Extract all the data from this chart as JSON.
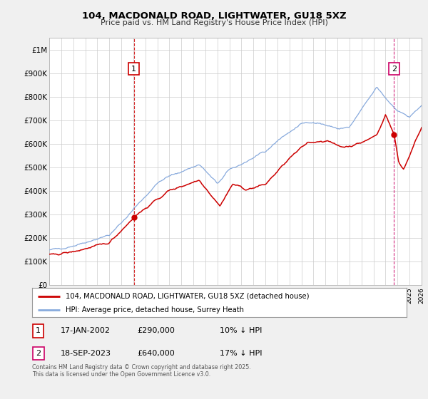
{
  "title1": "104, MACDONALD ROAD, LIGHTWATER, GU18 5XZ",
  "title2": "Price paid vs. HM Land Registry's House Price Index (HPI)",
  "legend1": "104, MACDONALD ROAD, LIGHTWATER, GU18 5XZ (detached house)",
  "legend2": "HPI: Average price, detached house, Surrey Heath",
  "annotation1_date": "17-JAN-2002",
  "annotation1_price": "£290,000",
  "annotation1_hpi": "10% ↓ HPI",
  "annotation2_date": "18-SEP-2023",
  "annotation2_price": "£640,000",
  "annotation2_hpi": "17% ↓ HPI",
  "footer": "Contains HM Land Registry data © Crown copyright and database right 2025.\nThis data is licensed under the Open Government Licence v3.0.",
  "price_color": "#cc0000",
  "hpi_color": "#88aadd",
  "vline1_color": "#cc0000",
  "vline2_color": "#cc0066",
  "bg_color": "#f0f0f0",
  "plot_bg": "#ffffff",
  "grid_color": "#cccccc",
  "ylim_max": 1050000,
  "sale1_year": 2002.046,
  "sale1_price": 290000,
  "sale2_year": 2023.712,
  "sale2_price": 640000
}
